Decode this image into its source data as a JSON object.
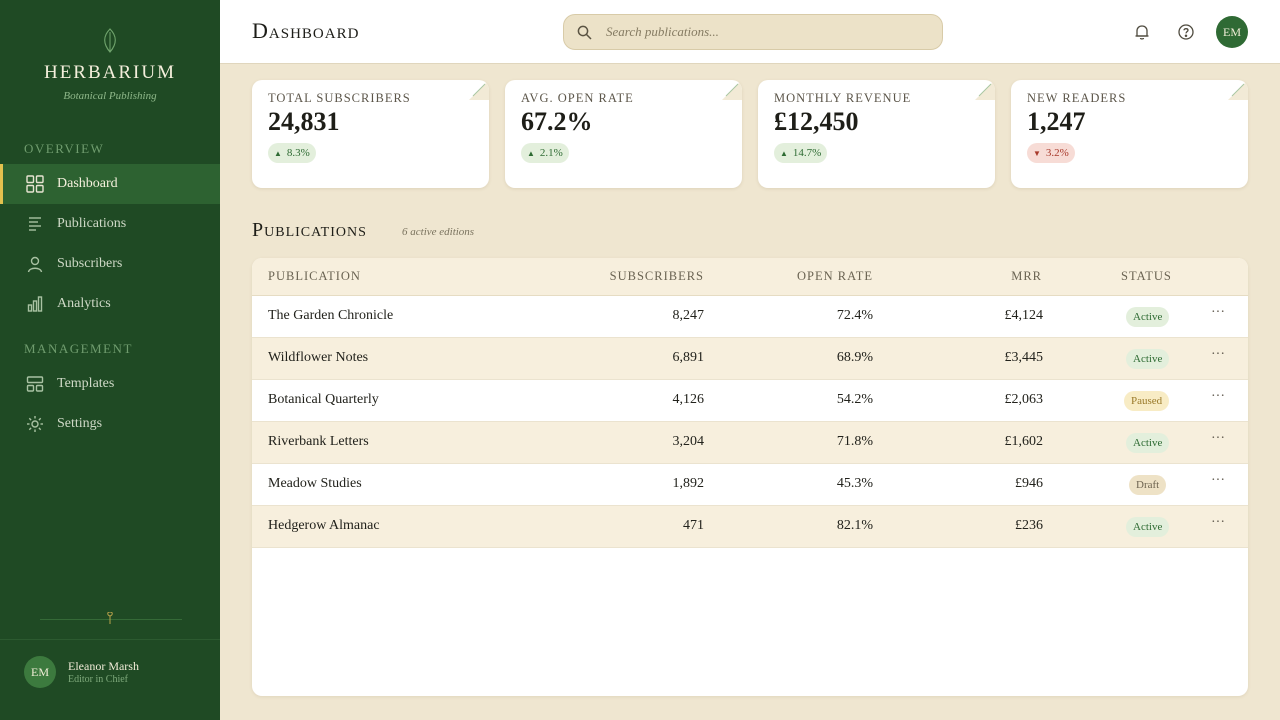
{
  "brand": {
    "name": "HERBARIUM",
    "subtitle": "Botanical Publishing"
  },
  "sidebar": {
    "sections": [
      {
        "label": "OVERVIEW"
      },
      {
        "label": "MANAGEMENT"
      }
    ],
    "items": [
      {
        "label": "Dashboard",
        "icon": "grid-icon",
        "active": true
      },
      {
        "label": "Publications",
        "icon": "document-lines-icon"
      },
      {
        "label": "Subscribers",
        "icon": "user-icon"
      },
      {
        "label": "Analytics",
        "icon": "bar-chart-icon"
      },
      {
        "label": "Templates",
        "icon": "layout-icon"
      },
      {
        "label": "Settings",
        "icon": "sun-gear-icon"
      }
    ],
    "user": {
      "initials": "EM",
      "name": "Eleanor Marsh",
      "role": "Editor in Chief"
    }
  },
  "header": {
    "title": "Dashboard",
    "search_placeholder": "Search publications...",
    "avatar_initials": "EM"
  },
  "stats": [
    {
      "label": "TOTAL SUBSCRIBERS",
      "value": "24,831",
      "change": "8.3%",
      "direction": "up"
    },
    {
      "label": "AVG. OPEN RATE",
      "value": "67.2%",
      "change": "2.1%",
      "direction": "up"
    },
    {
      "label": "MONTHLY REVENUE",
      "value": "£12,450",
      "change": "14.7%",
      "direction": "up"
    },
    {
      "label": "NEW READERS",
      "value": "1,247",
      "change": "3.2%",
      "direction": "down"
    }
  ],
  "publications": {
    "title": "Publications",
    "subtitle": "6 active editions",
    "columns": [
      "PUBLICATION",
      "SUBSCRIBERS",
      "OPEN RATE",
      "MRR",
      "STATUS"
    ],
    "rows": [
      {
        "name": "The Garden Chronicle",
        "subscribers": "8,247",
        "open_rate": "72.4%",
        "mrr": "£4,124",
        "status": "Active"
      },
      {
        "name": "Wildflower Notes",
        "subscribers": "6,891",
        "open_rate": "68.9%",
        "mrr": "£3,445",
        "status": "Active"
      },
      {
        "name": "Botanical Quarterly",
        "subscribers": "4,126",
        "open_rate": "54.2%",
        "mrr": "£2,063",
        "status": "Paused"
      },
      {
        "name": "Riverbank Letters",
        "subscribers": "3,204",
        "open_rate": "71.8%",
        "mrr": "£1,602",
        "status": "Active"
      },
      {
        "name": "Meadow Studies",
        "subscribers": "1,892",
        "open_rate": "45.3%",
        "mrr": "£946",
        "status": "Draft"
      },
      {
        "name": "Hedgerow Almanac",
        "subscribers": "471",
        "open_rate": "82.1%",
        "mrr": "£236",
        "status": "Active"
      }
    ],
    "more_label": "···"
  },
  "colors": {
    "sidebar_bg": "#1f4a24",
    "accent_gold": "#e3c14e",
    "page_bg": "#efe6d0",
    "status_active": "#2e6b33",
    "status_paused": "#9a7a2a",
    "negative": "#a83a2c"
  }
}
